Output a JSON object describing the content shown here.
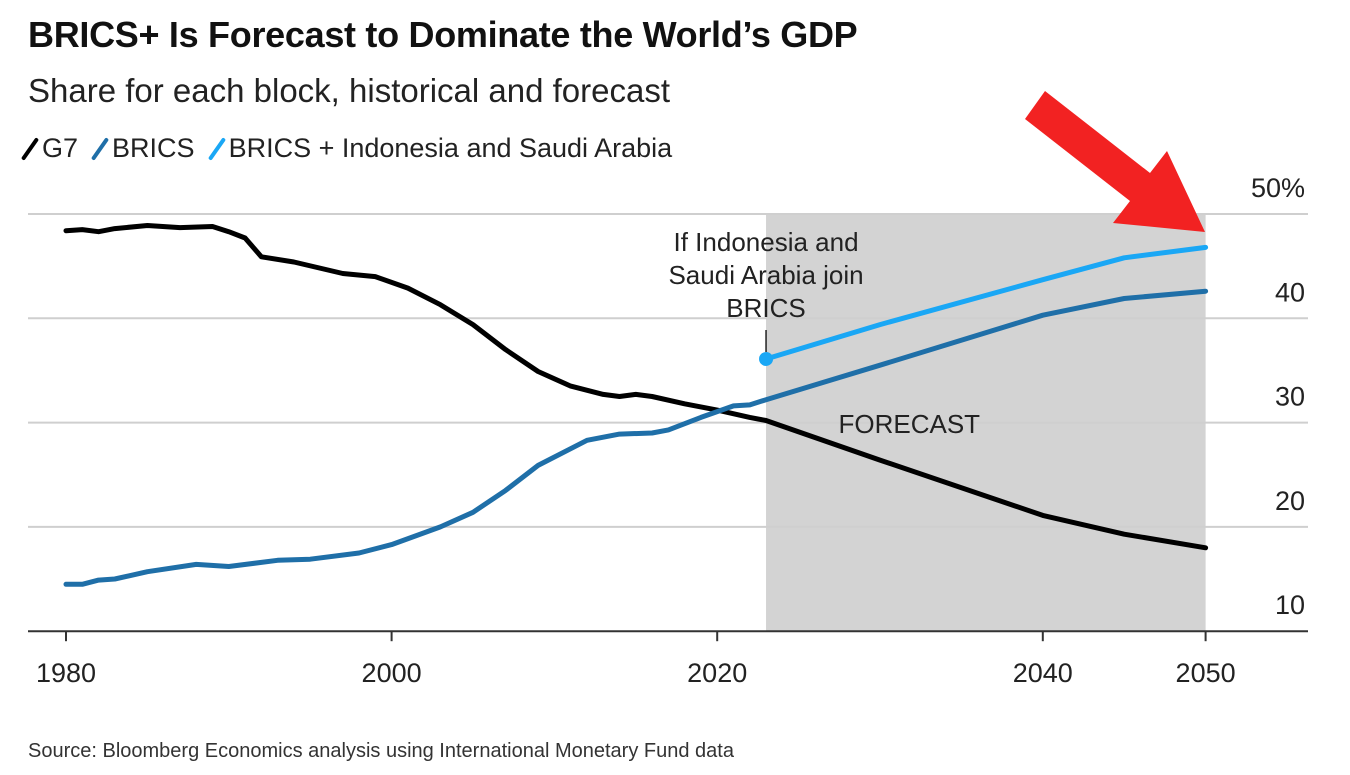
{
  "chart_data": {
    "type": "line",
    "title": "BRICS+ Is Forecast to Dominate the World’s GDP",
    "subtitle": "Share for each block, historical and forecast",
    "source": "Source: Bloomberg Economics analysis using International Monetary Fund data",
    "xlim": [
      1980,
      2052
    ],
    "ylim": [
      10,
      50
    ],
    "x_ticks": [
      "1980",
      "2000",
      "2020",
      "2040",
      "2050"
    ],
    "y_ticks": [
      "50%",
      "40",
      "30",
      "20",
      "10"
    ],
    "grid": true,
    "legend_placement": "top-left",
    "forecast_region": {
      "start": 2023,
      "end": 2050,
      "label": "FORECAST",
      "color": "#d3d3d3"
    },
    "annotation": {
      "text_lines": [
        "If Indonesia and",
        "Saudi Arabia join",
        "BRICS"
      ],
      "x": 2023
    },
    "series": [
      {
        "name": "G7",
        "color": "#000000",
        "x": [
          1980,
          1981,
          1982,
          1983,
          1985,
          1987,
          1989,
          1990,
          1991,
          1992,
          1994,
          1997,
          1999,
          2001,
          2003,
          2005,
          2007,
          2009,
          2011,
          2013,
          2014,
          2015,
          2016,
          2018,
          2020,
          2022,
          2023,
          2030,
          2040,
          2045,
          2050
        ],
        "y": [
          48.4,
          48.5,
          48.3,
          48.6,
          48.9,
          48.7,
          48.8,
          48.3,
          47.7,
          45.9,
          45.4,
          44.3,
          44.0,
          42.9,
          41.3,
          39.4,
          37.0,
          34.9,
          33.5,
          32.7,
          32.5,
          32.7,
          32.5,
          31.8,
          31.2,
          30.5,
          30.2,
          26.4,
          21.1,
          19.3,
          18.0
        ]
      },
      {
        "name": "BRICS",
        "color": "#1f6fa8",
        "x": [
          1980,
          1981,
          1982,
          1983,
          1985,
          1988,
          1990,
          1993,
          1995,
          1998,
          2000,
          2003,
          2005,
          2007,
          2009,
          2012,
          2014,
          2016,
          2017,
          2019,
          2021,
          2022,
          2023,
          2030,
          2040,
          2045,
          2050
        ],
        "y": [
          14.5,
          14.5,
          14.9,
          15.0,
          15.7,
          16.4,
          16.2,
          16.8,
          16.9,
          17.5,
          18.3,
          20.0,
          21.4,
          23.5,
          25.9,
          28.3,
          28.9,
          29.0,
          29.3,
          30.5,
          31.6,
          31.7,
          32.2,
          35.5,
          40.3,
          41.9,
          42.6
        ]
      },
      {
        "name": "BRICS + Indonesia and Saudi Arabia",
        "color": "#1aa7f5",
        "x": [
          2023,
          2030,
          2040,
          2045,
          2050
        ],
        "y": [
          36.1,
          39.4,
          43.7,
          45.8,
          46.8
        ]
      }
    ],
    "overlay": {
      "shape": "arrow",
      "color": "#f22222",
      "points_to": 2050
    }
  }
}
